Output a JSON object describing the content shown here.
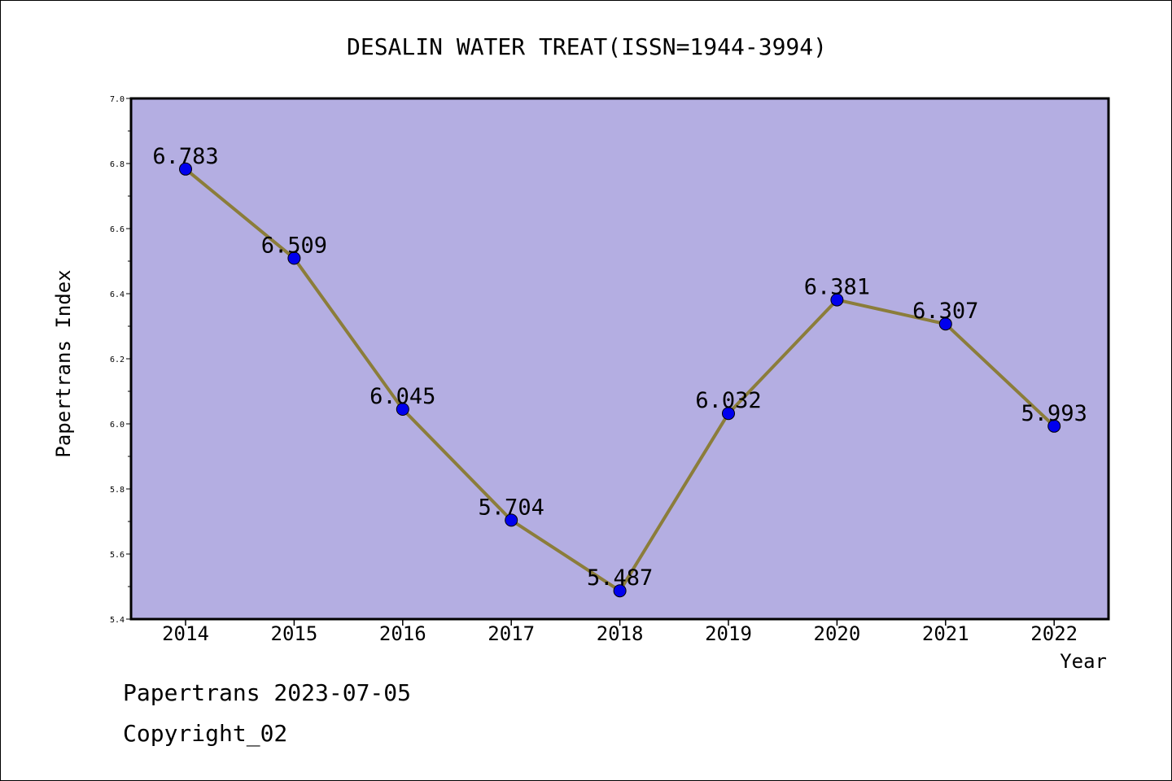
{
  "chart_data": {
    "type": "line",
    "title": "DESALIN WATER TREAT(ISSN=1944-3994)",
    "xlabel": "Year",
    "ylabel": "Papertrans Index",
    "categories": [
      "2014",
      "2015",
      "2016",
      "2017",
      "2018",
      "2019",
      "2020",
      "2021",
      "2022"
    ],
    "values": [
      6.783,
      6.509,
      6.045,
      5.704,
      5.487,
      6.032,
      6.381,
      6.307,
      5.993
    ],
    "data_labels": [
      "6.783",
      "6.509",
      "6.045",
      "5.704",
      "5.487",
      "6.032",
      "6.381",
      "6.307",
      "5.993"
    ],
    "ylim": [
      5.4,
      7.0
    ],
    "yticks": [
      "5.4",
      "5.6",
      "5.8",
      "6.0",
      "6.2",
      "6.4",
      "6.6",
      "6.8",
      "7.0"
    ],
    "grid": false,
    "legend": "none",
    "colors": {
      "plot_background": "#b4aee2",
      "line": "#8b7d3a",
      "marker": "#0000ee"
    }
  },
  "footer": {
    "line1": "Papertrans 2023-07-05",
    "line2": "Copyright_02"
  }
}
